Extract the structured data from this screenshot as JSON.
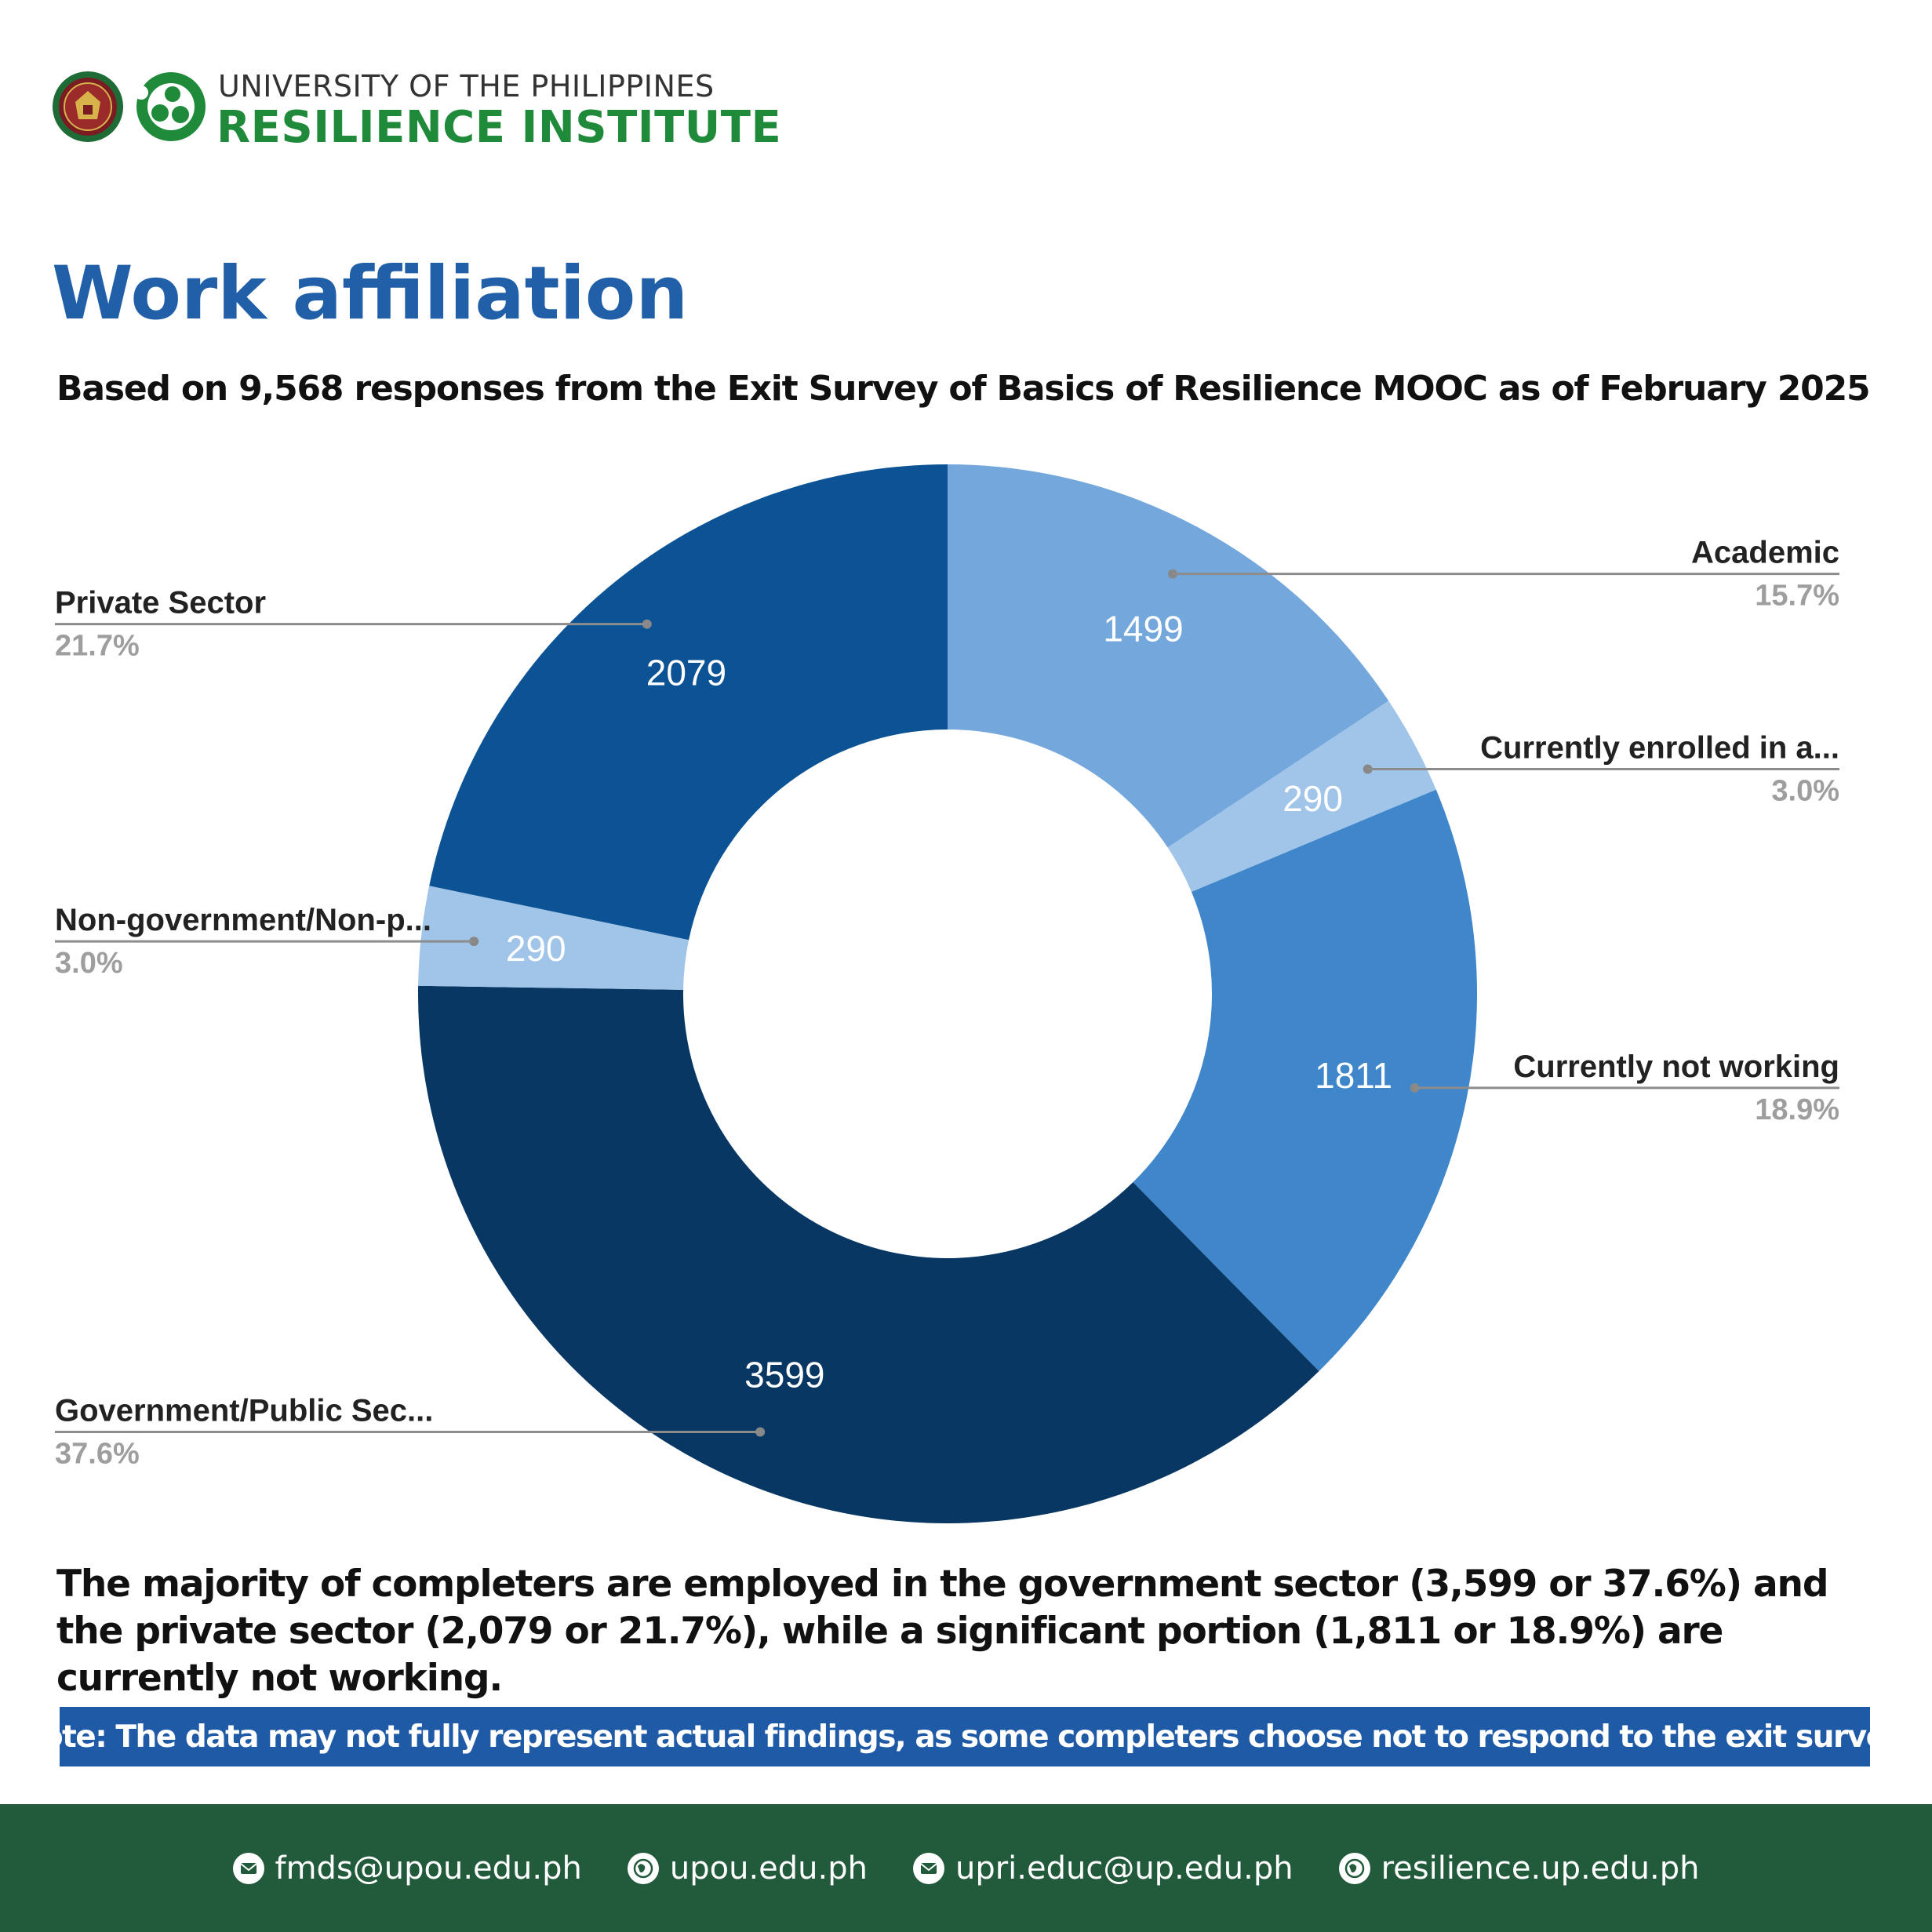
{
  "header": {
    "org_line1": "UNIVERSITY OF THE PHILIPPINES",
    "org_line2": "RESILIENCE INSTITUTE",
    "seal_icon": "up-seal-icon",
    "logo_icon": "resilience-institute-logo-icon"
  },
  "title": "Work affiliation",
  "subtitle": "Based on 9,568 responses from the Exit Survey of Basics of Resilience MOOC as of February 2025",
  "chart_data": {
    "type": "pie",
    "donut": true,
    "slices": [
      {
        "label": "Academic",
        "value": 1499,
        "percent": "15.7%",
        "color": "#74a8dd"
      },
      {
        "label": "Currently enrolled in a...",
        "value": 290,
        "percent": "3.0%",
        "color": "#a0c5e9"
      },
      {
        "label": "Currently not working",
        "value": 1811,
        "percent": "18.9%",
        "color": "#3f87ca"
      },
      {
        "label": "Government/Public Sec...",
        "value": 3599,
        "percent": "37.6%",
        "color": "#083763"
      },
      {
        "label": "Non-government/Non-p...",
        "value": 290,
        "percent": "3.0%",
        "color": "#a0c5e9"
      },
      {
        "label": "Private Sector",
        "value": 2079,
        "percent": "21.7%",
        "color": "#0b5394"
      }
    ],
    "legend": "callouts"
  },
  "summary": "The majority of completers are employed in the government sector (3,599 or 37.6%) and the private sector (2,079 or 21.7%), while a significant portion (1,811 or 18.9%) are currently not working.",
  "note": "Note: The data may not fully represent actual findings, as some completers choose not to respond to the exit survey.",
  "footer": {
    "contacts": [
      {
        "icon": "mail-icon",
        "text": "fmds@upou.edu.ph"
      },
      {
        "icon": "globe-icon",
        "text": "upou.edu.ph"
      },
      {
        "icon": "mail-icon",
        "text": "upri.educ@up.edu.ph"
      },
      {
        "icon": "globe-icon",
        "text": "resilience.up.edu.ph"
      }
    ]
  }
}
